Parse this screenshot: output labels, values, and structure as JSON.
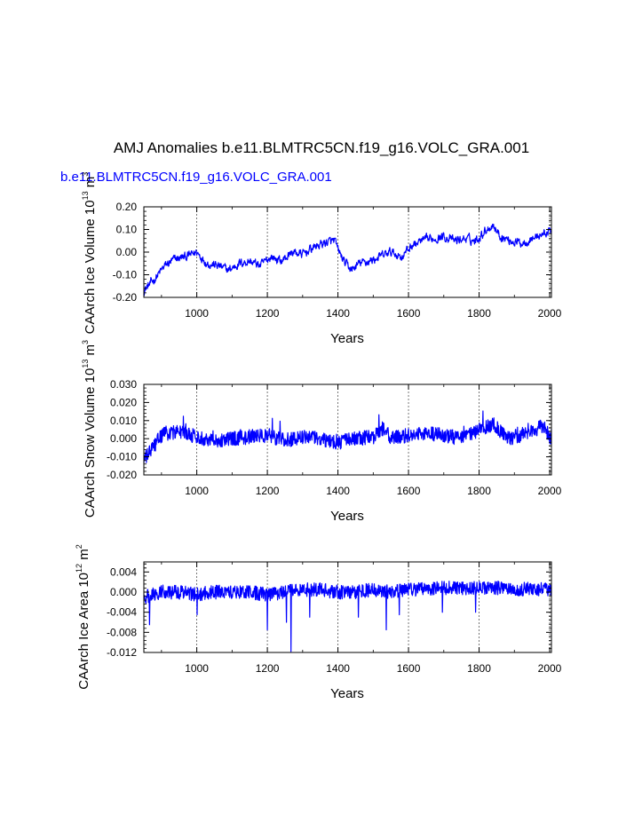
{
  "figure": {
    "title": "AMJ Anomalies b.e11.BLMTRC5CN.f19_g16.VOLC_GRA.001",
    "subtitle": "b.e11.BLMTRC5CN.f19_g16.VOLC_GRA.001",
    "subtitle_color": "#0000ff"
  },
  "chart_data": [
    {
      "type": "line",
      "panel": "ice-volume",
      "title": "",
      "xlabel": "Years",
      "ylabel": {
        "main": "CAArch Ice Volume 10",
        "exp": "13",
        "unit": " m",
        "unit_exp": "3"
      },
      "xlim": [
        850,
        2005
      ],
      "ylim": [
        -0.2,
        0.2
      ],
      "xticks": [
        1000,
        1200,
        1400,
        1600,
        1800,
        2000
      ],
      "yticks": [
        -0.2,
        -0.1,
        0.0,
        0.1,
        0.2
      ],
      "ytick_labels": [
        "-0.20",
        "-0.10",
        "0.00",
        "0.10",
        "0.20"
      ],
      "series_color": "#0000ff",
      "series": [
        {
          "name": "b.e11.BLMTRC5CN.f19_g16.VOLC_GRA.001",
          "x": [
            850,
            880,
            910,
            940,
            970,
            1000,
            1030,
            1060,
            1090,
            1120,
            1150,
            1180,
            1210,
            1240,
            1270,
            1300,
            1330,
            1360,
            1390,
            1400,
            1420,
            1440,
            1460,
            1490,
            1520,
            1550,
            1580,
            1610,
            1640,
            1670,
            1700,
            1730,
            1760,
            1790,
            1820,
            1840,
            1860,
            1890,
            1920,
            1950,
            1980,
            2000
          ],
          "values": [
            -0.17,
            -0.12,
            -0.06,
            -0.03,
            -0.02,
            0.0,
            -0.05,
            -0.06,
            -0.08,
            -0.05,
            -0.04,
            -0.06,
            -0.02,
            -0.04,
            0.0,
            -0.01,
            0.02,
            0.04,
            0.05,
            0.01,
            -0.05,
            -0.08,
            -0.05,
            -0.04,
            -0.02,
            0.0,
            -0.02,
            0.03,
            0.05,
            0.06,
            0.07,
            0.05,
            0.06,
            0.05,
            0.1,
            0.12,
            0.07,
            0.05,
            0.04,
            0.06,
            0.08,
            0.09
          ]
        }
      ]
    },
    {
      "type": "line",
      "panel": "snow-volume",
      "title": "",
      "xlabel": "Years",
      "ylabel": {
        "main": "CAArch Snow Volume 10",
        "exp": "13",
        "unit": " m",
        "unit_exp": "3"
      },
      "xlim": [
        850,
        2005
      ],
      "ylim": [
        -0.02,
        0.03
      ],
      "xticks": [
        1000,
        1200,
        1400,
        1600,
        1800,
        2000
      ],
      "yticks": [
        -0.02,
        -0.01,
        0.0,
        0.01,
        0.02,
        0.03
      ],
      "ytick_labels": [
        "-0.020",
        "-0.010",
        "0.000",
        "0.010",
        "0.020",
        "0.030"
      ],
      "series_color": "#0000ff",
      "series": [
        {
          "name": "b.e11.BLMTRC5CN.f19_g16.VOLC_GRA.001",
          "noise_amplitude": 0.004,
          "x": [
            850,
            900,
            950,
            1000,
            1050,
            1100,
            1150,
            1200,
            1250,
            1300,
            1350,
            1400,
            1450,
            1500,
            1530,
            1550,
            1600,
            1650,
            1700,
            1750,
            1800,
            1840,
            1880,
            1920,
            1960,
            1980,
            2005
          ],
          "values": [
            -0.012,
            0.002,
            0.004,
            0.001,
            -0.001,
            0.0,
            0.001,
            0.002,
            -0.001,
            0.001,
            0.0,
            -0.002,
            0.0,
            0.001,
            0.006,
            0.0,
            0.002,
            0.003,
            0.002,
            0.0,
            0.005,
            0.008,
            0.0,
            0.002,
            0.005,
            0.007,
            0.0
          ]
        }
      ]
    },
    {
      "type": "line",
      "panel": "ice-area",
      "title": "",
      "xlabel": "Years",
      "ylabel": {
        "main": "CAArch Ice Area 10",
        "exp": "12",
        "unit": " m",
        "unit_exp": "2"
      },
      "xlim": [
        850,
        2005
      ],
      "ylim": [
        -0.012,
        0.006
      ],
      "xticks": [
        1000,
        1200,
        1400,
        1600,
        1800,
        2000
      ],
      "yticks": [
        -0.012,
        -0.008,
        -0.004,
        0.0,
        0.004
      ],
      "ytick_labels": [
        "-0.012",
        "-0.008",
        "-0.004",
        "0.000",
        "0.004"
      ],
      "series_color": "#0000ff",
      "series": [
        {
          "name": "b.e11.BLMTRC5CN.f19_g16.VOLC_GRA.001",
          "noise_amplitude": 0.0014,
          "x": [
            850,
            900,
            950,
            1000,
            1050,
            1100,
            1150,
            1200,
            1250,
            1300,
            1350,
            1400,
            1450,
            1500,
            1550,
            1600,
            1650,
            1700,
            1750,
            1800,
            1850,
            1900,
            1950,
            2005
          ],
          "values": [
            -0.001,
            0.0,
            0.0,
            -0.0005,
            0.0,
            0.0,
            0.0,
            -0.0005,
            0.0,
            0.0005,
            0.0005,
            0.0,
            0.0,
            0.0005,
            0.0,
            0.0005,
            0.0005,
            0.0008,
            0.0008,
            0.0008,
            0.0008,
            0.0006,
            0.0006,
            0.0005
          ],
          "spikes": [
            {
              "x": 866,
              "value": -0.0065
            },
            {
              "x": 1001,
              "value": -0.0045
            },
            {
              "x": 1200,
              "value": -0.0075
            },
            {
              "x": 1254,
              "value": -0.006
            },
            {
              "x": 1267,
              "value": -0.0118
            },
            {
              "x": 1320,
              "value": -0.005
            },
            {
              "x": 1458,
              "value": -0.005
            },
            {
              "x": 1537,
              "value": -0.0075
            },
            {
              "x": 1574,
              "value": -0.0045
            },
            {
              "x": 1696,
              "value": -0.004
            },
            {
              "x": 1790,
              "value": -0.004
            }
          ]
        }
      ]
    }
  ]
}
